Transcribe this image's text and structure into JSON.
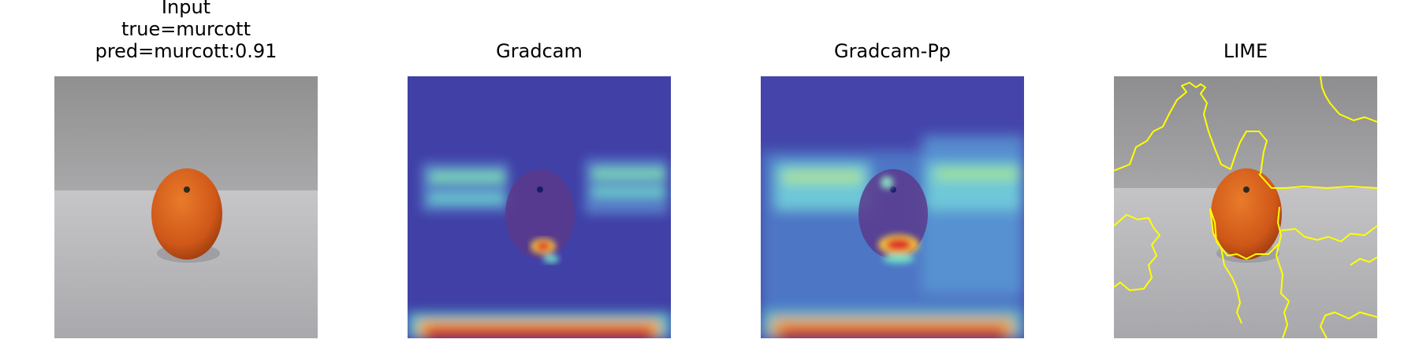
{
  "figure": {
    "panels": [
      {
        "id": "input",
        "title_lines": [
          "Input",
          "true=murcott",
          "pred=murcott:0.91"
        ],
        "image": "orange-photo"
      },
      {
        "id": "gradcam",
        "title_lines": [
          "Gradcam"
        ],
        "image": "gradcam-heatmap-overlay"
      },
      {
        "id": "gradcam-pp",
        "title_lines": [
          "Gradcam-Pp"
        ],
        "image": "gradcam-pp-heatmap-overlay"
      },
      {
        "id": "lime",
        "title_lines": [
          "LIME"
        ],
        "image": "lime-superpixel-boundaries"
      }
    ],
    "colors": {
      "background": "#ffffff",
      "heatmap_low": "#3f3fa8",
      "heatmap_mid": "#46c8d8",
      "heatmap_high": "#e0302a",
      "lime_boundary": "#ffff00",
      "orange": "#d9621c"
    }
  }
}
